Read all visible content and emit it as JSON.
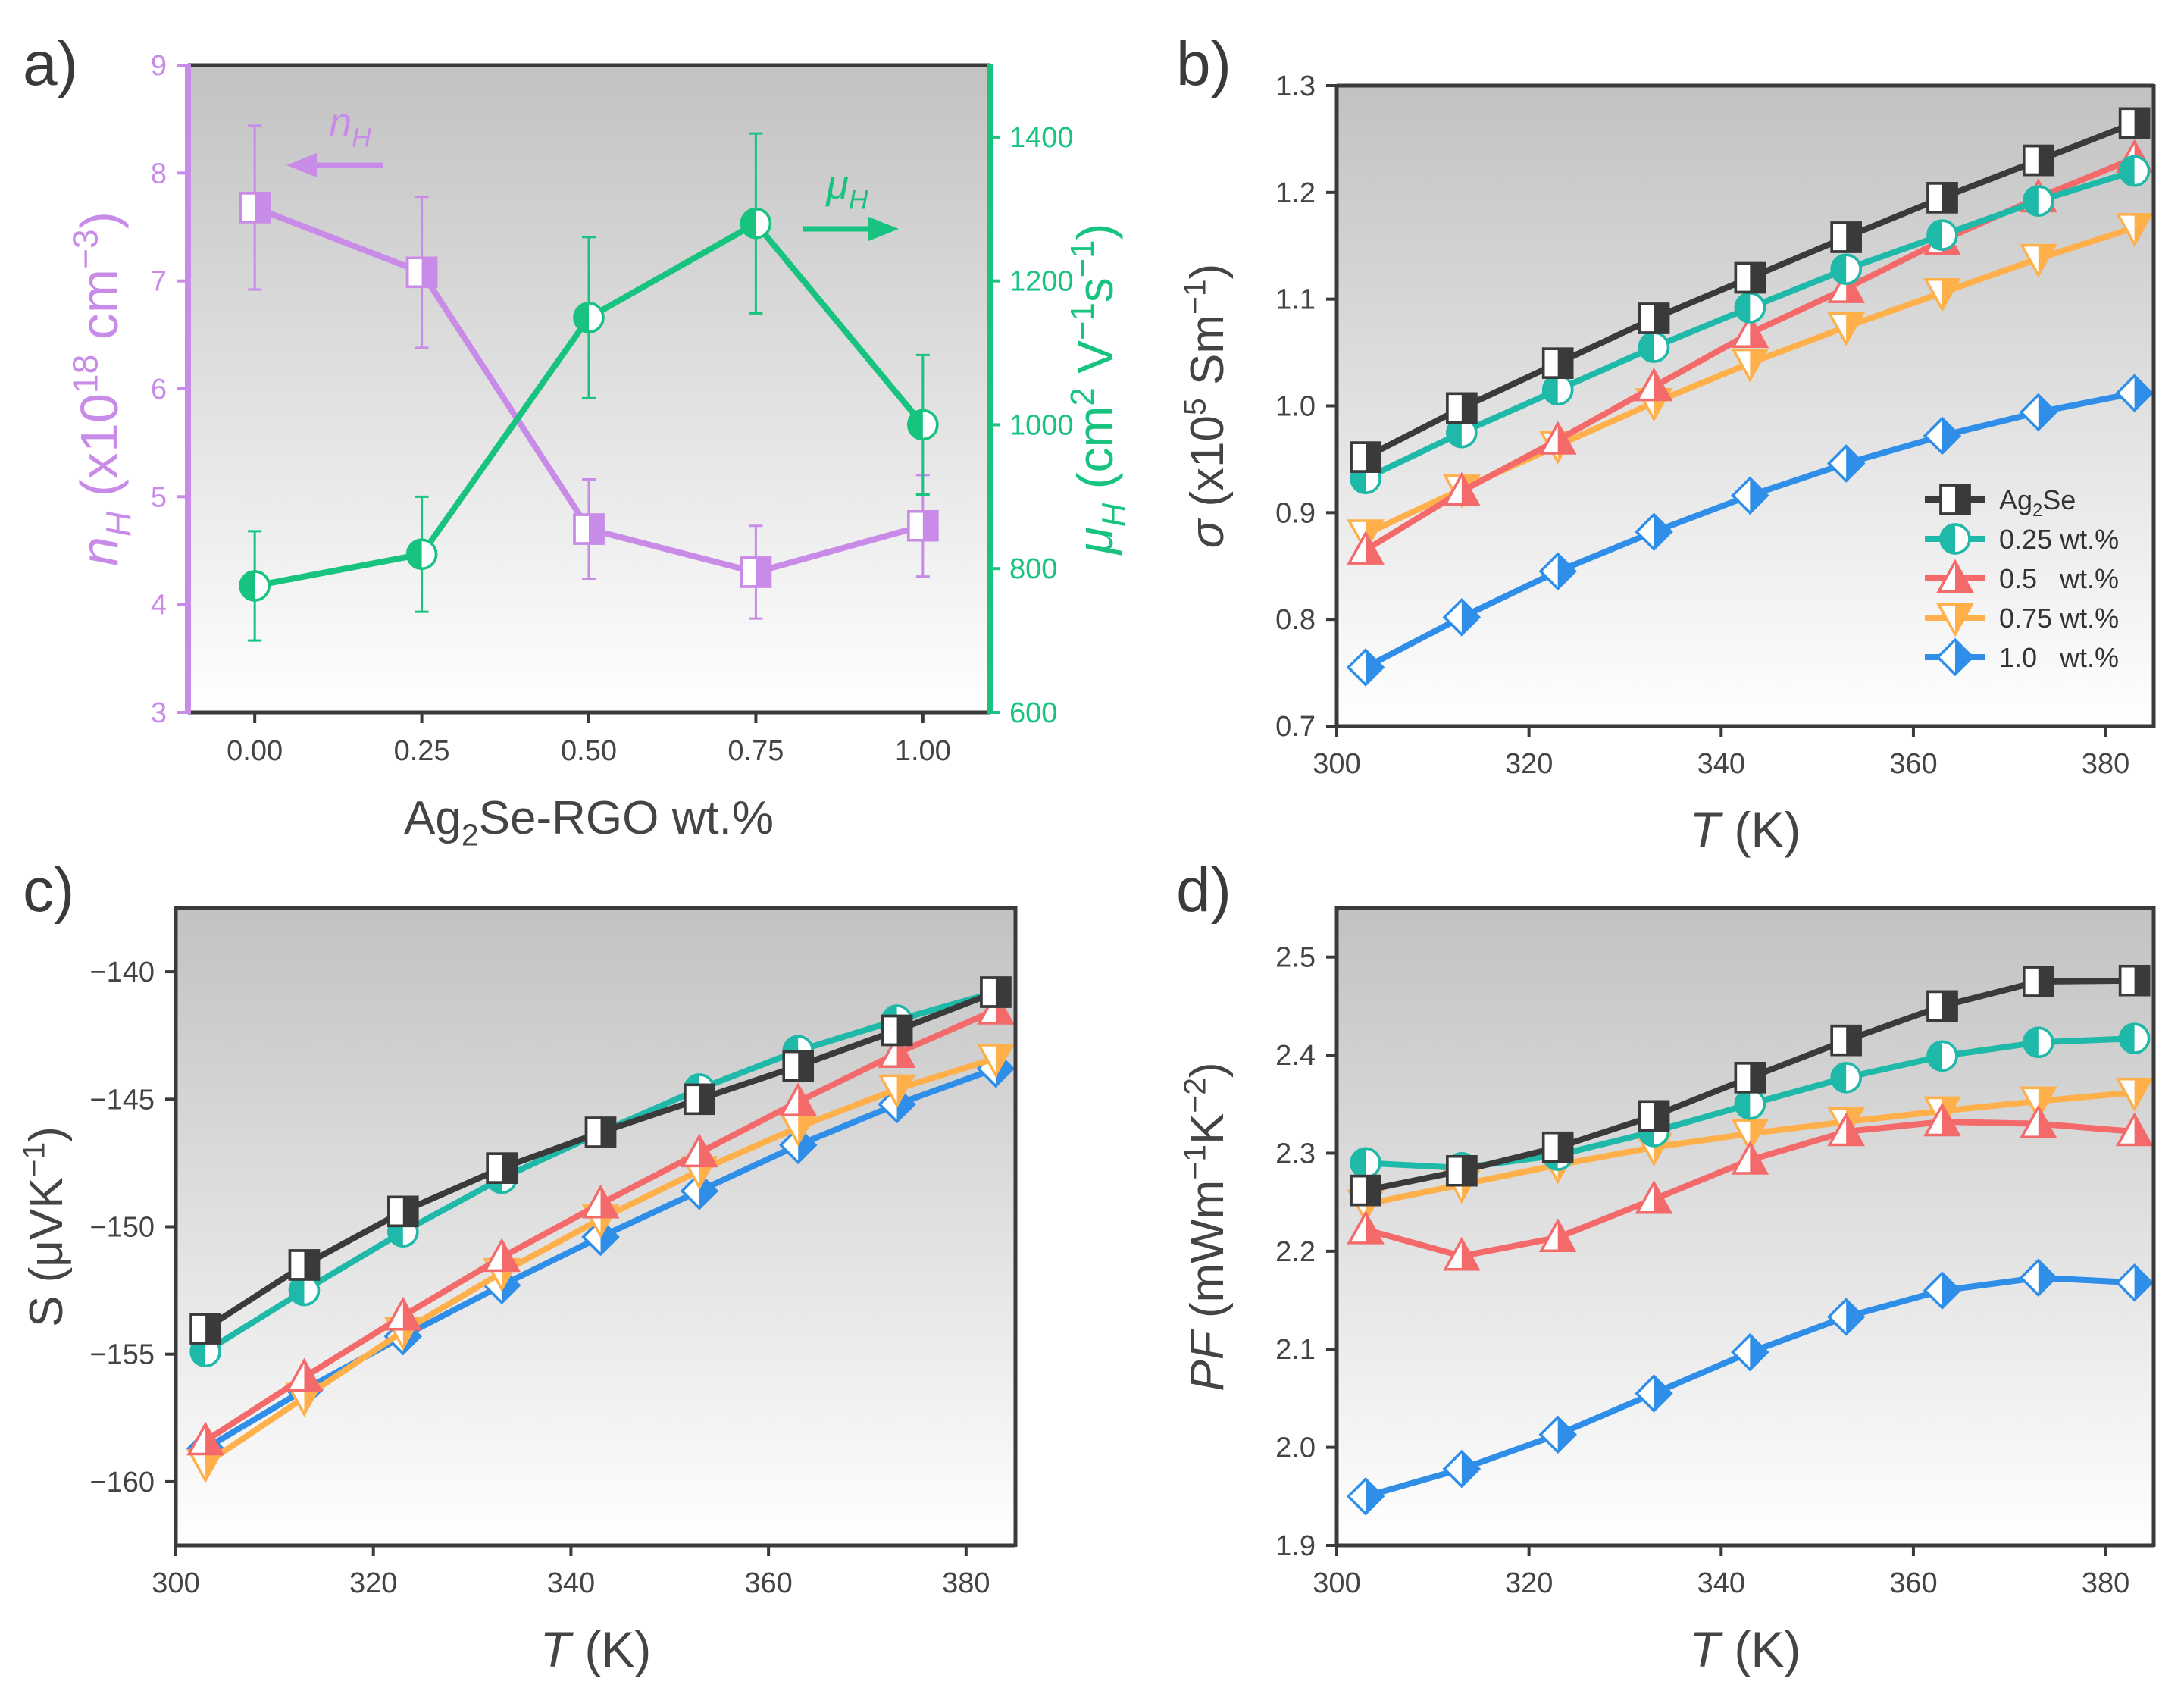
{
  "colors": {
    "black": "#3a3a3a",
    "teal": "#1fb9a9",
    "red": "#f46a6a",
    "orange": "#ffb04a",
    "blue": "#2f8ee8",
    "purple": "#c98be8",
    "green": "#17c37f"
  },
  "chart_data": [
    {
      "panel": "a)",
      "type": "line",
      "title": "",
      "xlabel": "Ag2Se-RGO wt.%",
      "xlabel_parts": [
        "Ag",
        "2",
        "Se-RGO wt.%"
      ],
      "xlim": [
        -0.1,
        1.1
      ],
      "xticks": [
        0,
        0.25,
        0.5,
        0.75,
        1.0
      ],
      "xtick_labels": [
        "0.00",
        "0.25",
        "0.50",
        "0.75",
        "1.00"
      ],
      "left_axis": {
        "label": "nH (x10^18 cm^-3)",
        "label_parts": {
          "n": "n",
          "sub": "H",
          "unit": " (x10",
          "sup": "18",
          "unit2": " cm",
          "sup2": "−3",
          "end": ")"
        },
        "ylim": [
          3,
          9
        ],
        "ticks": [
          3,
          4,
          5,
          6,
          7,
          8,
          9
        ],
        "tick_labels": [
          "3",
          "4",
          "5",
          "6",
          "7",
          "8",
          "9"
        ],
        "color": "#c98be8"
      },
      "right_axis": {
        "label": "μH (cm^2 V^-1 s^-1)",
        "label_parts": {
          "mu": "μ",
          "sub": "H",
          "a": " (cm",
          "s1": "2",
          "b": " V",
          "s2": "−1",
          "c": "s",
          "s3": "−1",
          "d": ")"
        },
        "ylim": [
          600,
          1500
        ],
        "ticks": [
          600,
          800,
          1000,
          1200,
          1400
        ],
        "tick_labels": [
          "600",
          "800",
          "1000",
          "1200",
          "1400"
        ],
        "color": "#17c37f"
      },
      "series": [
        {
          "name": "nH",
          "axis": "left",
          "color": "#c98be8",
          "marker": "half-square",
          "x": [
            0,
            0.25,
            0.5,
            0.75,
            1.0
          ],
          "values": [
            7.68,
            7.08,
            4.7,
            4.3,
            4.73
          ],
          "err": [
            0.76,
            0.7,
            0.46,
            0.43,
            0.47
          ]
        },
        {
          "name": "μH",
          "axis": "right",
          "color": "#17c37f",
          "marker": "half-circle",
          "x": [
            0,
            0.25,
            0.5,
            0.75,
            1.0
          ],
          "values": [
            776,
            820,
            1149,
            1280,
            1000
          ],
          "err": [
            76,
            80,
            112,
            125,
            97
          ]
        }
      ],
      "annotations": [
        {
          "text": "nH",
          "main": "n",
          "sub": "H",
          "arrow": "left",
          "color": "#c98be8"
        },
        {
          "text": "μH",
          "main": "μ",
          "sub": "H",
          "arrow": "right",
          "color": "#17c37f"
        }
      ]
    },
    {
      "panel": "b)",
      "type": "line",
      "xlabel": "T (K)",
      "xlabel_parts": [
        "T",
        " (K)"
      ],
      "ylabel": "σ (x10^5 Sm^-1)",
      "ylabel_parts": {
        "sym": "σ",
        "a": " (x10",
        "s1": "5",
        "b": " Sm",
        "s2": "−1",
        "c": ")"
      },
      "xlim": [
        300,
        385
      ],
      "ylim": [
        0.7,
        1.3
      ],
      "xticks": [
        300,
        320,
        340,
        360,
        380
      ],
      "xtick_labels": [
        "300",
        "320",
        "340",
        "360",
        "380"
      ],
      "yticks": [
        0.7,
        0.8,
        0.9,
        1.0,
        1.1,
        1.2,
        1.3
      ],
      "ytick_labels": [
        "0.7",
        "0.8",
        "0.9",
        "1.0",
        "1.1",
        "1.2",
        "1.3"
      ],
      "legend_position": "bottom-right",
      "x": [
        303,
        313,
        323,
        333,
        343,
        353,
        363,
        373,
        383
      ],
      "series": [
        {
          "name": "Ag2Se",
          "legend_parts": [
            "Ag",
            "2",
            "Se"
          ],
          "color": "#3a3a3a",
          "marker": "half-square",
          "values": [
            0.952,
            0.998,
            1.04,
            1.082,
            1.12,
            1.158,
            1.195,
            1.23,
            1.265
          ]
        },
        {
          "name": "0.25 wt.%",
          "color": "#1fb9a9",
          "marker": "half-circle",
          "values": [
            0.932,
            0.975,
            1.015,
            1.055,
            1.092,
            1.128,
            1.16,
            1.192,
            1.22
          ]
        },
        {
          "name": "0.5   wt.%",
          "color": "#f46a6a",
          "marker": "half-triangle-up",
          "values": [
            0.865,
            0.92,
            0.968,
            1.018,
            1.068,
            1.11,
            1.155,
            1.195,
            1.232
          ]
        },
        {
          "name": "0.75 wt.%",
          "color": "#ffb04a",
          "marker": "half-triangle-down",
          "values": [
            0.88,
            0.922,
            0.963,
            1.003,
            1.04,
            1.074,
            1.106,
            1.138,
            1.167
          ]
        },
        {
          "name": "1.0   wt.%",
          "color": "#2f8ee8",
          "marker": "half-diamond",
          "values": [
            0.755,
            0.802,
            0.845,
            0.882,
            0.916,
            0.946,
            0.972,
            0.994,
            1.012
          ]
        }
      ]
    },
    {
      "panel": "c)",
      "type": "line",
      "xlabel": "T (K)",
      "xlabel_parts": [
        "T",
        " (K)"
      ],
      "ylabel": "S (μVK^-1)",
      "ylabel_parts": {
        "a": "S (μVK",
        "s1": "−1",
        "b": ")"
      },
      "xlim": [
        300,
        385
      ],
      "ylim": [
        -162.5,
        -137.5
      ],
      "xticks": [
        300,
        320,
        340,
        360,
        380
      ],
      "xtick_labels": [
        "300",
        "320",
        "340",
        "360",
        "380"
      ],
      "yticks": [
        -160,
        -155,
        -150,
        -145,
        -140
      ],
      "ytick_labels": [
        "−160",
        "−155",
        "−150",
        "−145",
        "−140"
      ],
      "x": [
        303,
        313,
        323,
        333,
        343,
        353,
        363,
        373,
        383
      ],
      "series": [
        {
          "name": "Ag2Se",
          "color": "#3a3a3a",
          "marker": "half-square",
          "values": [
            -154.0,
            -151.5,
            -149.4,
            -147.7,
            -146.3,
            -145.0,
            -143.7,
            -142.3,
            -140.8
          ]
        },
        {
          "name": "0.25 wt.%",
          "color": "#1fb9a9",
          "marker": "half-circle",
          "values": [
            -154.9,
            -152.5,
            -150.2,
            -148.1,
            -146.3,
            -144.6,
            -143.1,
            -141.9,
            -140.8
          ]
        },
        {
          "name": "0.5 wt.%",
          "color": "#f46a6a",
          "marker": "half-triangle-up",
          "values": [
            -158.4,
            -155.9,
            -153.5,
            -151.2,
            -149.1,
            -147.1,
            -145.1,
            -143.2,
            -141.5
          ]
        },
        {
          "name": "0.75 wt.%",
          "color": "#ffb04a",
          "marker": "half-triangle-down",
          "values": [
            -159.3,
            -156.7,
            -154.1,
            -151.8,
            -149.7,
            -147.8,
            -146.1,
            -144.6,
            -143.4
          ]
        },
        {
          "name": "1.0 wt.%",
          "color": "#2f8ee8",
          "marker": "half-diamond",
          "values": [
            -158.7,
            -156.4,
            -154.3,
            -152.3,
            -150.4,
            -148.6,
            -146.8,
            -145.2,
            -143.8
          ]
        }
      ]
    },
    {
      "panel": "d)",
      "type": "line",
      "xlabel": "T (K)",
      "xlabel_parts": [
        "T",
        " (K)"
      ],
      "ylabel": "PF (mWm^-1K^-2)",
      "ylabel_parts": {
        "sym": "PF",
        "a": " (mWm",
        "s1": "−1",
        "b": "K",
        "s2": "−2",
        "c": ")"
      },
      "xlim": [
        300,
        385
      ],
      "ylim": [
        1.9,
        2.55
      ],
      "xticks": [
        300,
        320,
        340,
        360,
        380
      ],
      "xtick_labels": [
        "300",
        "320",
        "340",
        "360",
        "380"
      ],
      "yticks": [
        1.9,
        2.0,
        2.1,
        2.2,
        2.3,
        2.4,
        2.5
      ],
      "ytick_labels": [
        "1.9",
        "2.0",
        "2.1",
        "2.2",
        "2.3",
        "2.4",
        "2.5"
      ],
      "x": [
        303,
        313,
        323,
        333,
        343,
        353,
        363,
        373,
        383
      ],
      "series": [
        {
          "name": "Ag2Se",
          "color": "#3a3a3a",
          "marker": "half-square",
          "values": [
            2.262,
            2.282,
            2.306,
            2.338,
            2.377,
            2.415,
            2.45,
            2.475,
            2.476
          ]
        },
        {
          "name": "0.25 wt.%",
          "color": "#1fb9a9",
          "marker": "half-circle",
          "values": [
            2.29,
            2.285,
            2.298,
            2.322,
            2.35,
            2.377,
            2.399,
            2.413,
            2.417
          ]
        },
        {
          "name": "0.5 wt.%",
          "color": "#f46a6a",
          "marker": "half-triangle-up",
          "values": [
            2.222,
            2.195,
            2.214,
            2.253,
            2.293,
            2.322,
            2.332,
            2.33,
            2.322
          ]
        },
        {
          "name": "0.75 wt.%",
          "color": "#ffb04a",
          "marker": "half-triangle-down",
          "values": [
            2.248,
            2.268,
            2.288,
            2.306,
            2.32,
            2.332,
            2.343,
            2.353,
            2.362
          ]
        },
        {
          "name": "1.0 wt.%",
          "color": "#2f8ee8",
          "marker": "half-diamond",
          "values": [
            1.95,
            1.978,
            2.013,
            2.055,
            2.097,
            2.133,
            2.16,
            2.173,
            2.168
          ]
        }
      ]
    }
  ]
}
